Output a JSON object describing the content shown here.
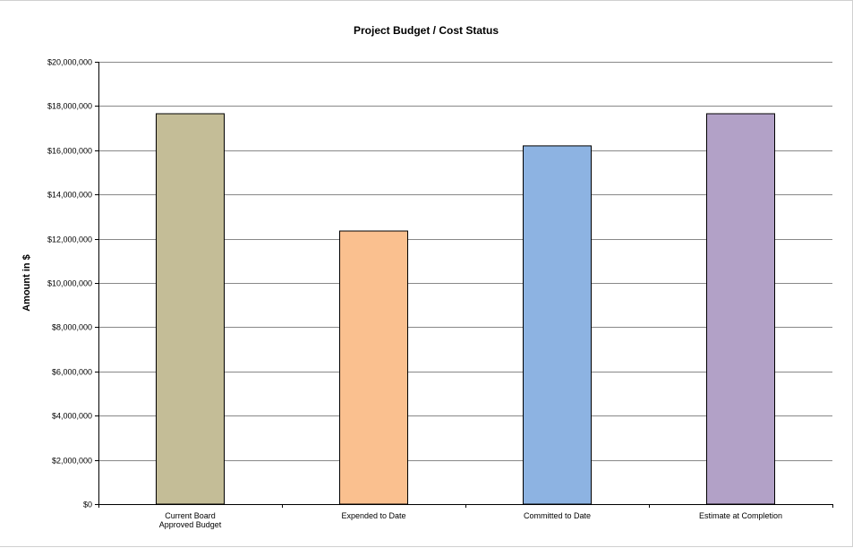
{
  "chart_data": {
    "type": "bar",
    "title": "Project Budget / Cost Status",
    "xlabel": "",
    "ylabel": "Amount in $",
    "ylim": [
      0,
      20000000
    ],
    "ytick_step": 2000000,
    "ytick_labels": [
      "$0",
      "$2,000,000",
      "$4,000,000",
      "$6,000,000",
      "$8,000,000",
      "$10,000,000",
      "$12,000,000",
      "$14,000,000",
      "$16,000,000",
      "$18,000,000",
      "$20,000,000"
    ],
    "categories": [
      [
        "Current Board",
        "Approved Budget"
      ],
      [
        "Expended to Date"
      ],
      [
        "Committed to Date"
      ],
      [
        "Estimate at Completion"
      ]
    ],
    "values": [
      17650000,
      12350000,
      16200000,
      17650000
    ],
    "colors": [
      "#c4bd97",
      "#fac08f",
      "#8db3e2",
      "#b2a1c7"
    ],
    "grid": true,
    "legend": "none"
  }
}
